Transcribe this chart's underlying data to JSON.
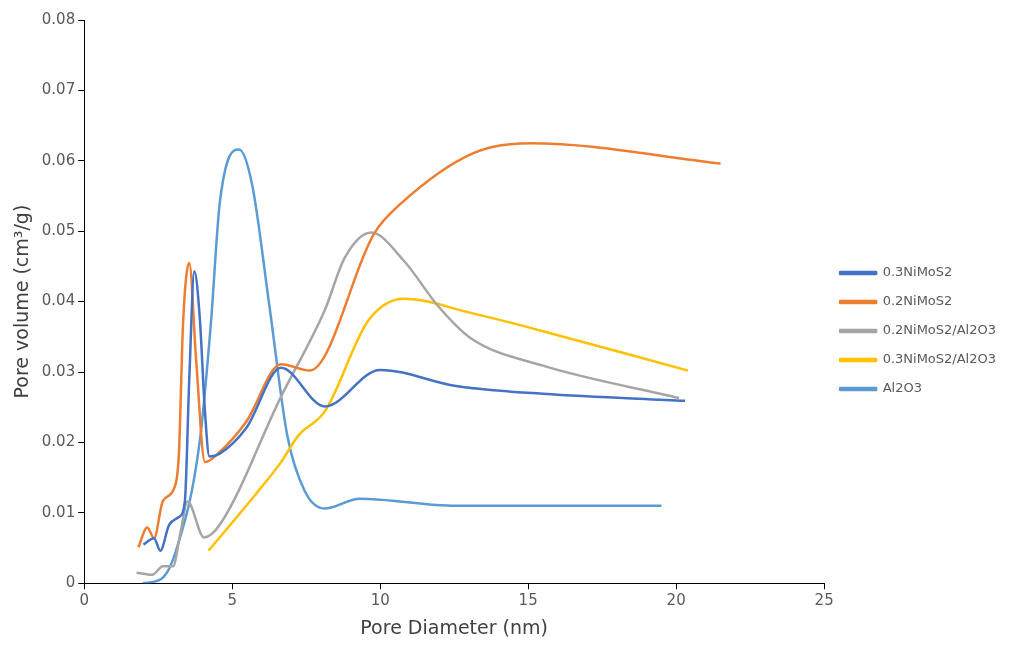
{
  "chart_data": {
    "type": "line",
    "xlabel": "Pore Diameter (nm)",
    "ylabel": "Pore volume (cm³/g)",
    "xlim": [
      0,
      25
    ],
    "xticks": [
      0,
      5,
      10,
      15,
      20,
      25
    ],
    "ylim": [
      0,
      0.08
    ],
    "yticks": [
      0,
      0.01,
      0.02,
      0.03,
      0.04,
      0.05,
      0.06,
      0.07,
      0.08
    ],
    "grid": false,
    "legend": "right",
    "marker": "none",
    "line_style": "solid",
    "series": [
      {
        "name": "0.3NiMoS2",
        "color": "#4472c4",
        "x": [
          2.0,
          2.36,
          2.57,
          2.87,
          3.2,
          3.4,
          3.55,
          3.72,
          3.9,
          4.08,
          4.23,
          4.58,
          5.47,
          6.65,
          8.13,
          10.0,
          12.56,
          15.5,
          20.3
        ],
        "values": [
          0.0055,
          0.0064,
          0.0046,
          0.0083,
          0.0094,
          0.0116,
          0.029,
          0.0443,
          0.038,
          0.0244,
          0.018,
          0.0184,
          0.022,
          0.0306,
          0.0251,
          0.0303,
          0.028,
          0.0269,
          0.0259
        ]
      },
      {
        "name": "0.2NiMoS2",
        "color": "#ed7d31",
        "x": [
          1.83,
          2.13,
          2.36,
          2.66,
          3.04,
          3.2,
          3.34,
          3.55,
          3.78,
          4.08,
          4.49,
          5.47,
          6.65,
          7.62,
          9.8,
          10.64,
          13.15,
          15.1,
          21.5
        ],
        "values": [
          0.0051,
          0.0079,
          0.0064,
          0.0117,
          0.0135,
          0.0184,
          0.0369,
          0.0455,
          0.0318,
          0.0172,
          0.0183,
          0.0229,
          0.0311,
          0.0302,
          0.0497,
          0.0537,
          0.0611,
          0.0625,
          0.0596
        ]
      },
      {
        "name": "0.2NiMoS2/Al2O3",
        "color": "#a5a5a5",
        "x": [
          1.77,
          2.3,
          2.66,
          3.0,
          3.25,
          3.49,
          4.05,
          4.58,
          6.65,
          8.13,
          8.8,
          9.7,
          10.8,
          11.97,
          13.06,
          15.5,
          20.1
        ],
        "values": [
          0.0015,
          0.0012,
          0.0024,
          0.0024,
          0.0071,
          0.0116,
          0.0065,
          0.0083,
          0.0265,
          0.0388,
          0.0462,
          0.0498,
          0.0458,
          0.0393,
          0.0348,
          0.0309,
          0.0263
        ]
      },
      {
        "name": "0.3NiMoS2/Al2O3",
        "color": "#ffc000",
        "x": [
          4.2,
          5.67,
          6.65,
          7.24,
          8.13,
          9.6,
          10.8,
          13.06,
          15.5,
          20.4
        ],
        "values": [
          0.0046,
          0.012,
          0.0172,
          0.021,
          0.0244,
          0.0373,
          0.0404,
          0.0384,
          0.0358,
          0.0302
        ]
      },
      {
        "name": "Al2O3",
        "color": "#5b9bd5",
        "x": [
          1.98,
          2.6,
          3.1,
          3.9,
          4.28,
          4.58,
          5.23,
          5.67,
          6.26,
          6.86,
          7.45,
          8.13,
          9.3,
          12.56,
          19.5
        ],
        "values": [
          0.0,
          0.0006,
          0.0046,
          0.02,
          0.0369,
          0.054,
          0.0616,
          0.0567,
          0.0393,
          0.021,
          0.0131,
          0.0106,
          0.012,
          0.011,
          0.011
        ]
      }
    ]
  }
}
